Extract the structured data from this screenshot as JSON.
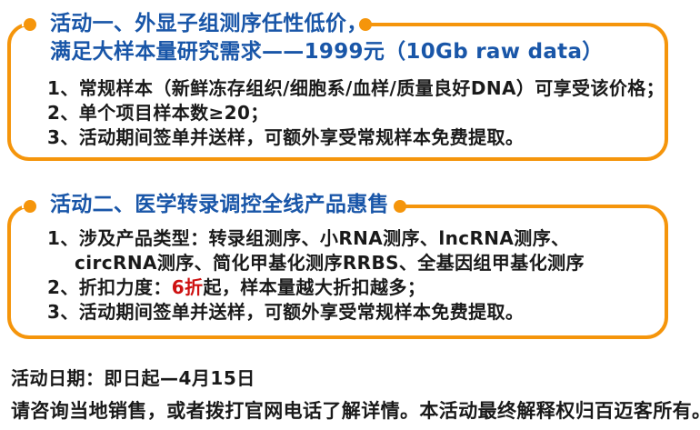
{
  "colors": {
    "orange": "#F5950B",
    "blue": "#1956A8",
    "red": "#CE1111",
    "text": "#1A1A1A"
  },
  "promo1": {
    "title_line1": "活动一、外显子组测序任性低价，",
    "title_line2": "满足大样本量研究需求——1999元（10Gb raw data）",
    "items": [
      "1、常规样本（新鲜冻存组织/细胞系/血样/质量良好DNA）可享受该价格；",
      "2、单个项目样本数≥20；",
      "3、活动期间签单并送样，可额外享受常规样本免费提取。"
    ]
  },
  "promo2": {
    "title": "活动二、医学转录调控全线产品惠售",
    "item1_line1": "1、涉及产品类型：转录组测序、小RNA测序、lncRNA测序、",
    "item1_line2": "circRNA测序、简化甲基化测序RRBS、全基因组甲基化测序",
    "item2_prefix": "2、折扣力度：",
    "item2_highlight": "6折",
    "item2_suffix": "起，样本量越大折扣越多；",
    "item3": "3、活动期间签单并送样，可额外享受常规样本免费提取。"
  },
  "footer": {
    "date_line": "活动日期：即日起—4月15日",
    "note_line": "请咨询当地销售，或者拨打官网电话了解详情。本活动最终解释权归百迈客所有。"
  }
}
